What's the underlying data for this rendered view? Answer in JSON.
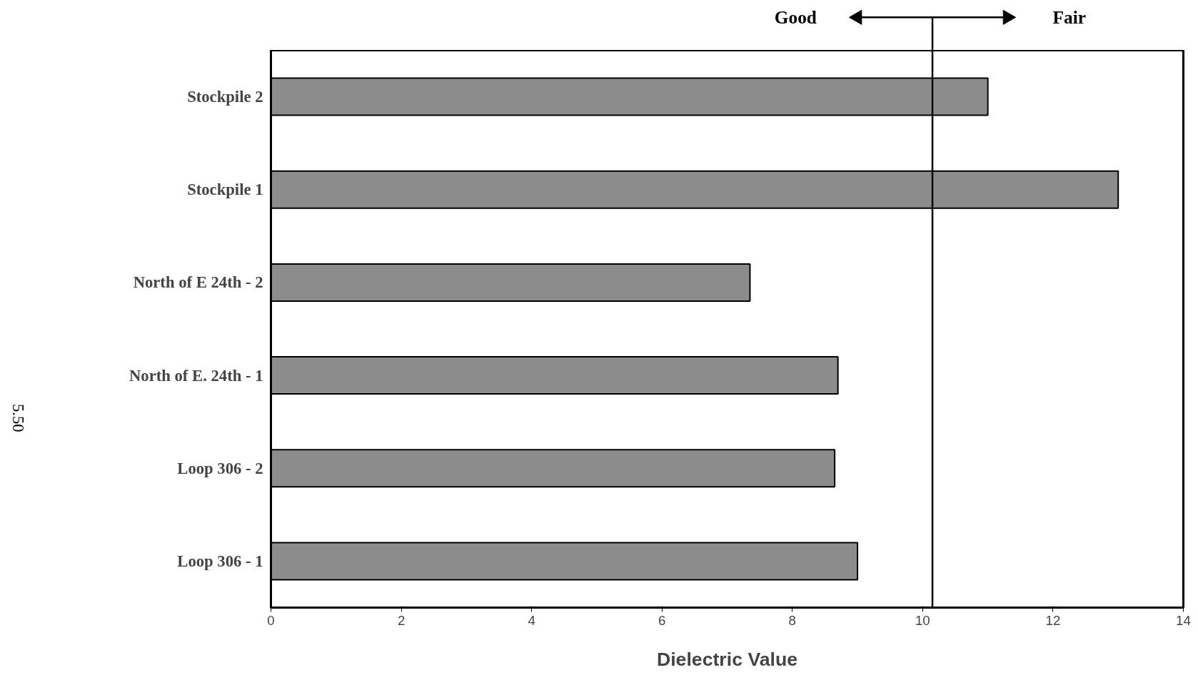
{
  "chart_data": {
    "type": "bar",
    "orientation": "horizontal",
    "xlabel": "Dielectric Value",
    "categories": [
      "Stockpile 2",
      "Stockpile 1",
      "North of E 24th - 2",
      "North of E. 24th - 1",
      "Loop 306 - 2",
      "Loop 306 - 1"
    ],
    "values": [
      11.0,
      13.0,
      7.35,
      8.7,
      8.65,
      9.0
    ],
    "color": "#8c8c8c",
    "xlim": [
      0,
      14
    ],
    "xticks": [
      0,
      2,
      4,
      6,
      8,
      10,
      12,
      14
    ],
    "ref_lines": [
      {
        "axis": "x",
        "value": 10.15,
        "color": "#000000"
      }
    ],
    "annotations": [
      "Good",
      "Fair",
      "5.50"
    ],
    "grid": false
  }
}
